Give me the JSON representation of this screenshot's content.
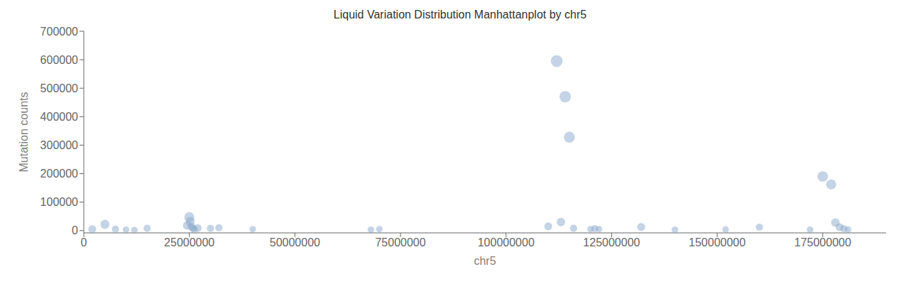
{
  "chart_data": {
    "type": "scatter",
    "title": "Liquid Variation Distribution Manhattanplot by chr5",
    "xlabel": "chr5",
    "ylabel": "Mutation counts",
    "xlim": [
      0,
      190000000
    ],
    "ylim": [
      -8000,
      700000
    ],
    "xticks": [
      0,
      25000000,
      50000000,
      75000000,
      100000000,
      125000000,
      150000000,
      175000000
    ],
    "yticks": [
      0,
      100000,
      200000,
      300000,
      400000,
      500000,
      600000,
      700000
    ],
    "color": "#8aa8cc",
    "grid": false,
    "x": [
      2000000,
      5000000,
      7500000,
      10000000,
      12000000,
      15000000,
      24500000,
      25000000,
      25200000,
      25500000,
      25800000,
      26200000,
      27000000,
      30000000,
      32000000,
      40000000,
      68000000,
      70000000,
      110000000,
      112000000,
      113000000,
      114000000,
      115000000,
      116000000,
      120000000,
      121000000,
      122000000,
      132000000,
      140000000,
      152000000,
      160000000,
      172000000,
      175000000,
      177000000,
      178000000,
      179000000,
      180000000,
      181000000
    ],
    "values": [
      5000,
      22000,
      5000,
      3000,
      2000,
      8000,
      18000,
      47000,
      32000,
      14000,
      8000,
      5000,
      9000,
      8000,
      10000,
      5000,
      3000,
      5000,
      15000,
      595000,
      30000,
      470000,
      328000,
      8000,
      5000,
      7000,
      5000,
      13000,
      3000,
      4000,
      12000,
      3000,
      190000,
      162000,
      28000,
      12000,
      7000,
      4000
    ],
    "sizes": [
      5,
      7,
      4,
      3,
      3,
      4,
      6,
      9,
      7,
      5,
      4,
      4,
      5,
      4,
      4,
      3,
      3,
      3,
      5,
      13,
      6,
      12,
      11,
      4,
      3,
      4,
      3,
      5,
      3,
      3,
      4,
      3,
      10,
      9,
      6,
      5,
      4,
      3
    ]
  }
}
